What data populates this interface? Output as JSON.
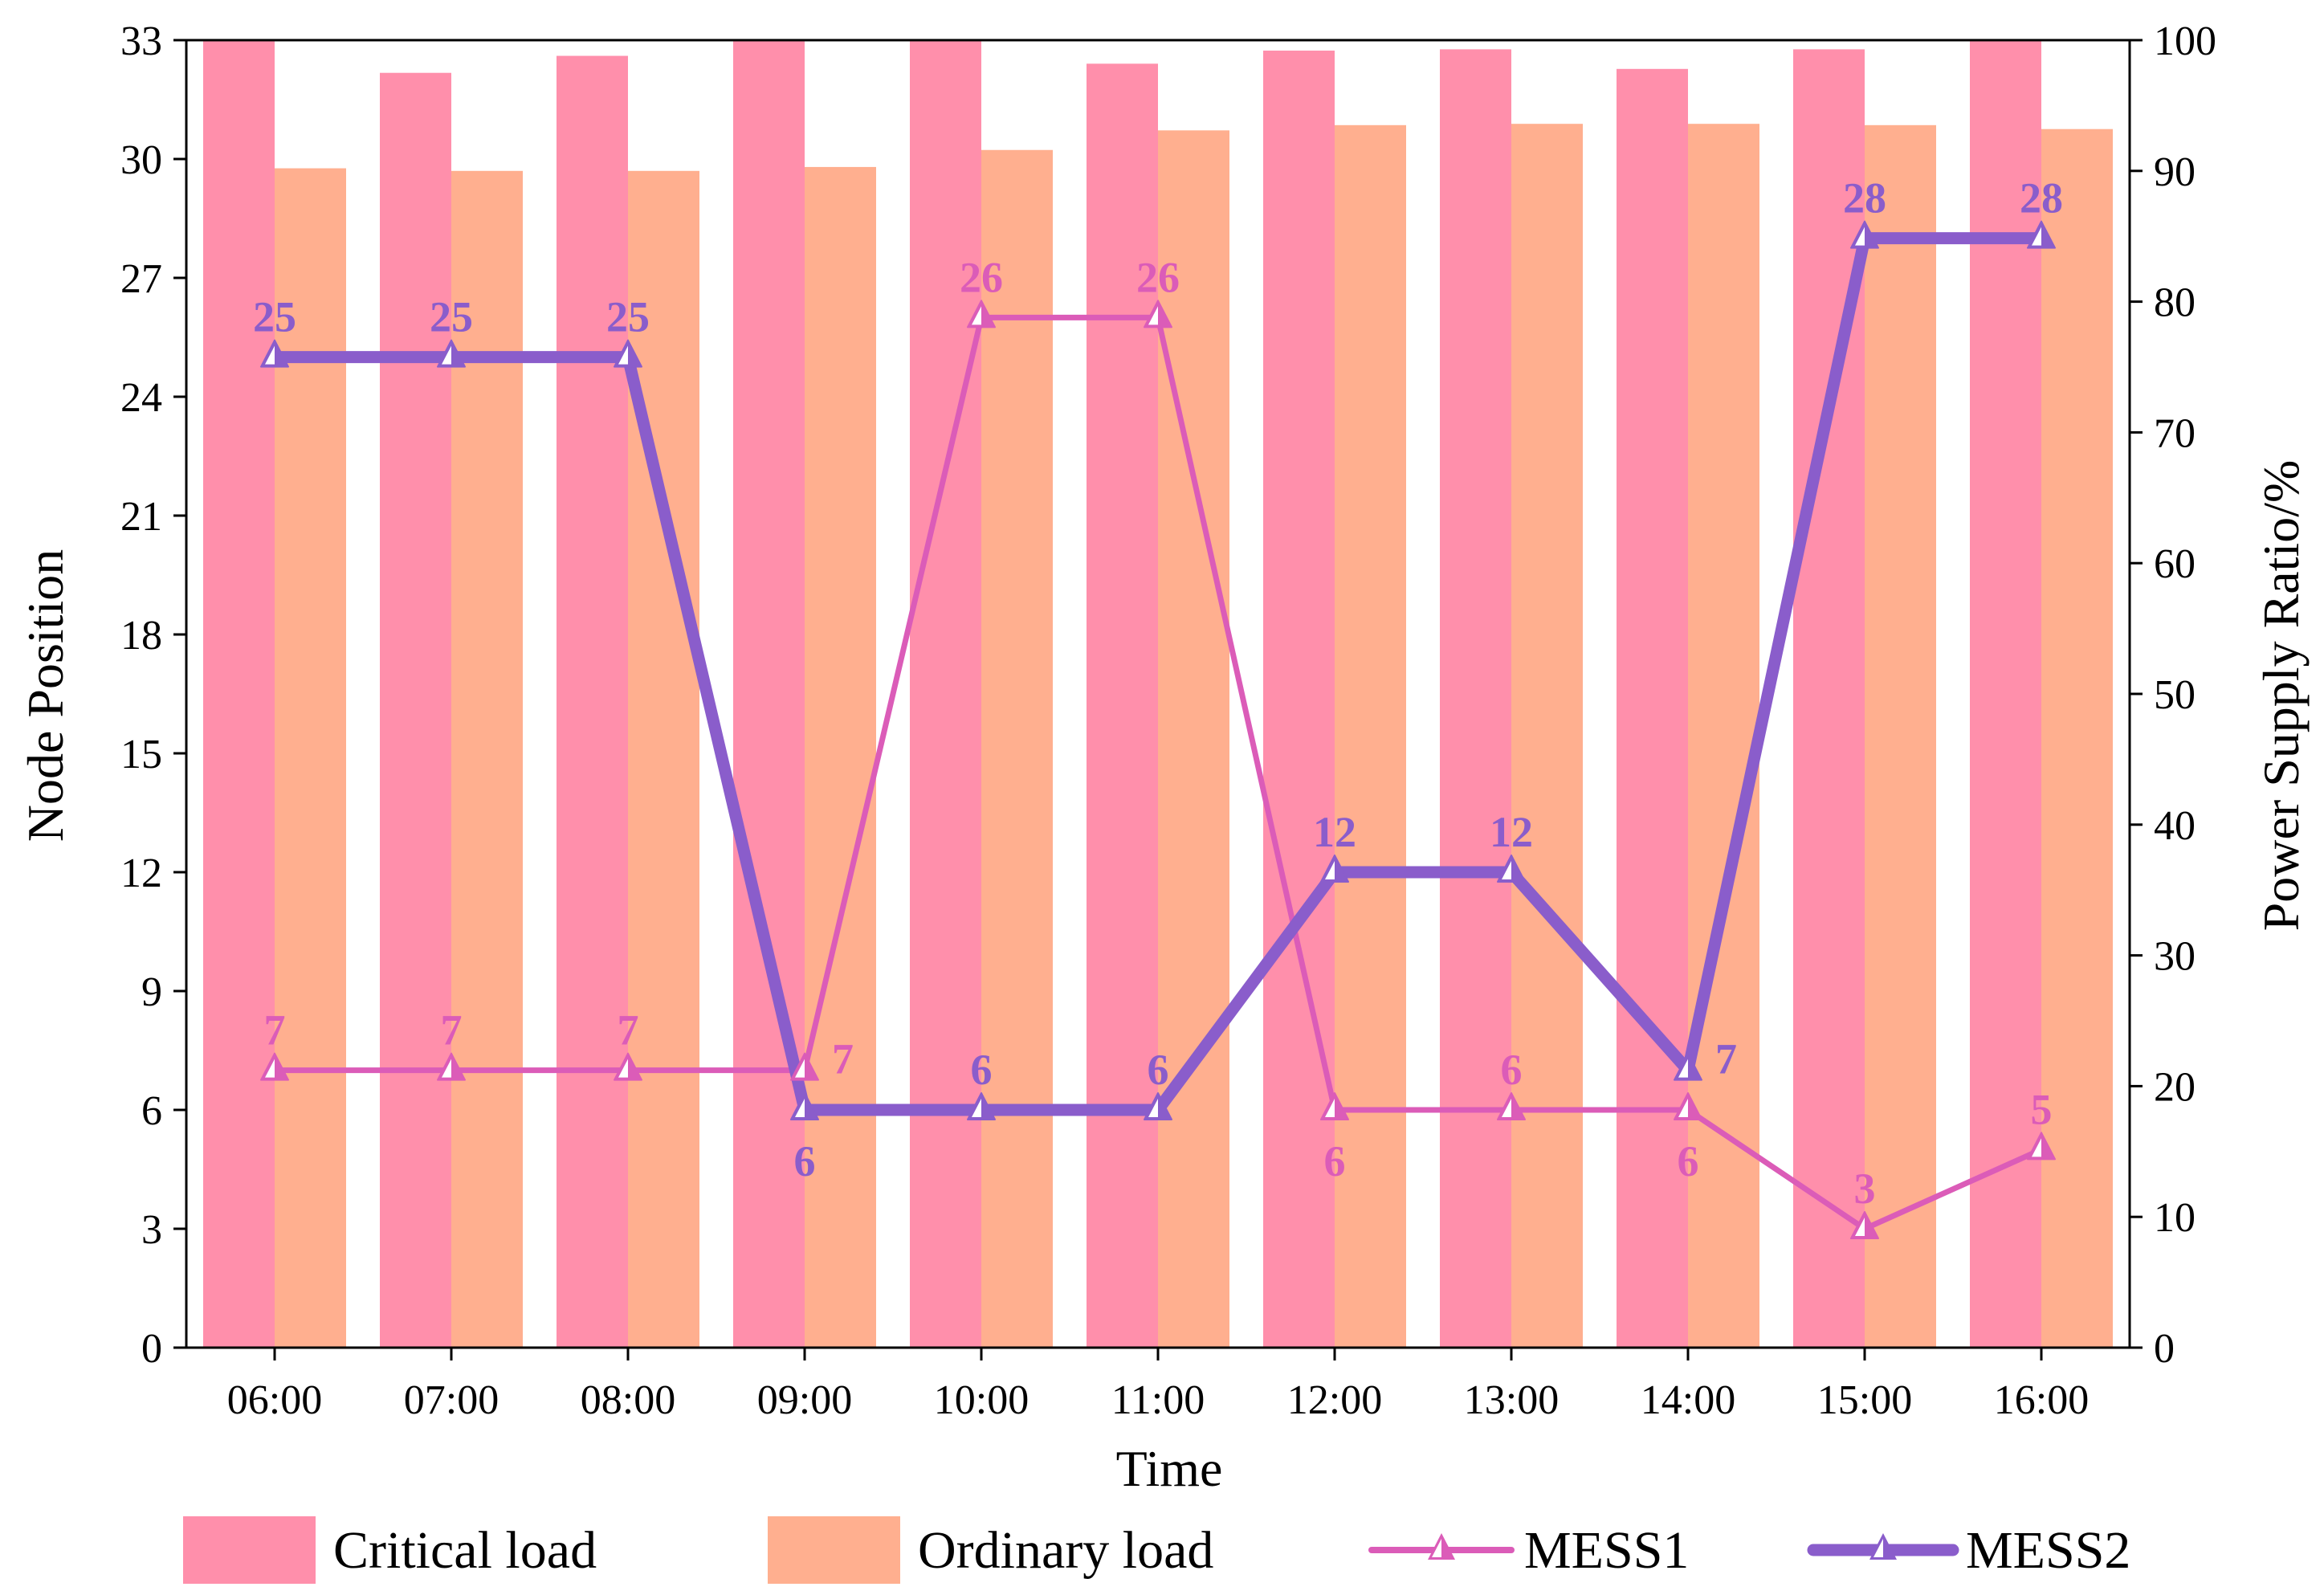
{
  "chart_data": {
    "type": "bar",
    "xlabel": "Time",
    "ylabel_left": "Node Position",
    "ylabel_right": "Power Supply Ratio/%",
    "categories": [
      "06:00",
      "07:00",
      "08:00",
      "09:00",
      "10:00",
      "11:00",
      "12:00",
      "13:00",
      "14:00",
      "15:00",
      "16:00"
    ],
    "left_axis": {
      "range": [
        0,
        33
      ],
      "ticks": [
        "0",
        "3",
        "6",
        "9",
        "12",
        "15",
        "18",
        "21",
        "24",
        "27",
        "30",
        "33"
      ]
    },
    "right_axis": {
      "range": [
        0,
        100
      ],
      "ticks": [
        "0",
        "10",
        "20",
        "30",
        "40",
        "50",
        "60",
        "70",
        "80",
        "90",
        "100"
      ]
    },
    "bar_series": [
      {
        "name": "Critical load",
        "color": "#FF8FAB",
        "axis": "right",
        "values": [
          100,
          97.5,
          98.8,
          100,
          100,
          98.2,
          99.2,
          99.3,
          97.8,
          99.3,
          100
        ]
      },
      {
        "name": "Ordinary load",
        "color": "#FFAF8F",
        "axis": "right",
        "values": [
          90.2,
          90.0,
          90.0,
          90.3,
          91.6,
          93.1,
          93.5,
          93.6,
          93.6,
          93.5,
          93.2
        ]
      }
    ],
    "line_series": [
      {
        "name": "MESS1",
        "color": "#DB5CB8",
        "axis": "left",
        "values": [
          7,
          7,
          7,
          7,
          26,
          26,
          6,
          6,
          6,
          3,
          5
        ],
        "labels": [
          "7",
          "7",
          "7",
          "7",
          "26",
          "26",
          "6",
          "6",
          "6",
          "3",
          "5"
        ],
        "label_pos": [
          "above",
          "above",
          "above",
          "right",
          "above",
          "above",
          "below",
          "above",
          "below",
          "above",
          "above"
        ]
      },
      {
        "name": "MESS2",
        "color": "#8A5DCB",
        "axis": "left",
        "values": [
          25,
          25,
          25,
          6,
          6,
          6,
          12,
          12,
          7,
          28,
          28
        ],
        "labels": [
          "25",
          "25",
          "25",
          "6",
          "6",
          "6",
          "12",
          "12",
          "7",
          "28",
          "28"
        ],
        "label_pos": [
          "above",
          "above",
          "above",
          "below",
          "above",
          "above",
          "above",
          "above",
          "right",
          "above",
          "above"
        ]
      }
    ],
    "legend": [
      "Critical load",
      "Ordinary load",
      "MESS1",
      "MESS2"
    ],
    "legend_position": "bottom"
  }
}
